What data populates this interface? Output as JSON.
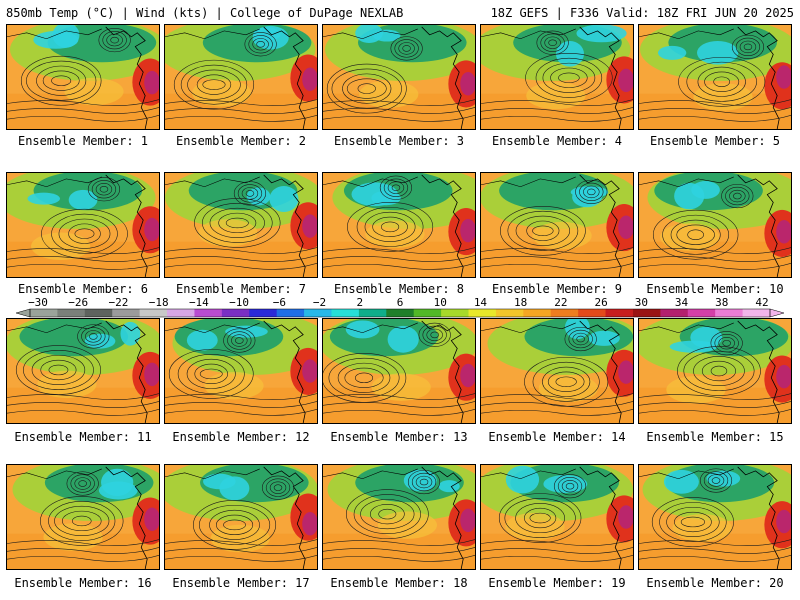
{
  "header": {
    "left": "850mb Temp (°C) | Wind (kts) | College of DuPage NEXLAB",
    "right": "18Z GEFS | F336 Valid: 18Z FRI JUN 20 2025"
  },
  "members": [
    "Ensemble Member: 1",
    "Ensemble Member: 2",
    "Ensemble Member: 3",
    "Ensemble Member: 4",
    "Ensemble Member: 5",
    "Ensemble Member: 6",
    "Ensemble Member: 7",
    "Ensemble Member: 8",
    "Ensemble Member: 9",
    "Ensemble Member: 10",
    "Ensemble Member: 11",
    "Ensemble Member: 12",
    "Ensemble Member: 13",
    "Ensemble Member: 14",
    "Ensemble Member: 15",
    "Ensemble Member: 16",
    "Ensemble Member: 17",
    "Ensemble Member: 18",
    "Ensemble Member: 19",
    "Ensemble Member: 20"
  ],
  "colorbar": {
    "ticks": [
      "−30",
      "−26",
      "−22",
      "−18",
      "−14",
      "−10",
      "−6",
      "−2",
      "2",
      "6",
      "10",
      "14",
      "18",
      "22",
      "26",
      "30",
      "34",
      "38",
      "42"
    ],
    "colors": [
      "#9aa39a",
      "#7a807a",
      "#5e635e",
      "#9b9b9b",
      "#c8c8c8",
      "#d7a6e6",
      "#b84cd0",
      "#7a2fc4",
      "#2a2ad8",
      "#1f6fe6",
      "#28b8e8",
      "#27e0d8",
      "#0fae8a",
      "#1f7f2a",
      "#52b827",
      "#a7d92a",
      "#e8e82a",
      "#f3c62a",
      "#f5a623",
      "#ee7d1f",
      "#e34a1a",
      "#c81e1e",
      "#9a1414",
      "#b31f6e",
      "#d43fa8",
      "#ec7dd6",
      "#f2b5ea"
    ]
  },
  "map_colors": {
    "cold": "#2fd3df",
    "cool": "#1e9f6a",
    "mild": "#9cd63a",
    "warm": "#f6c23a",
    "hot": "#f59a2a",
    "very_hot": "#e0321c",
    "extreme": "#b3247a",
    "ocean_base": "#f7a63a",
    "contour": "#1a1a1a"
  }
}
